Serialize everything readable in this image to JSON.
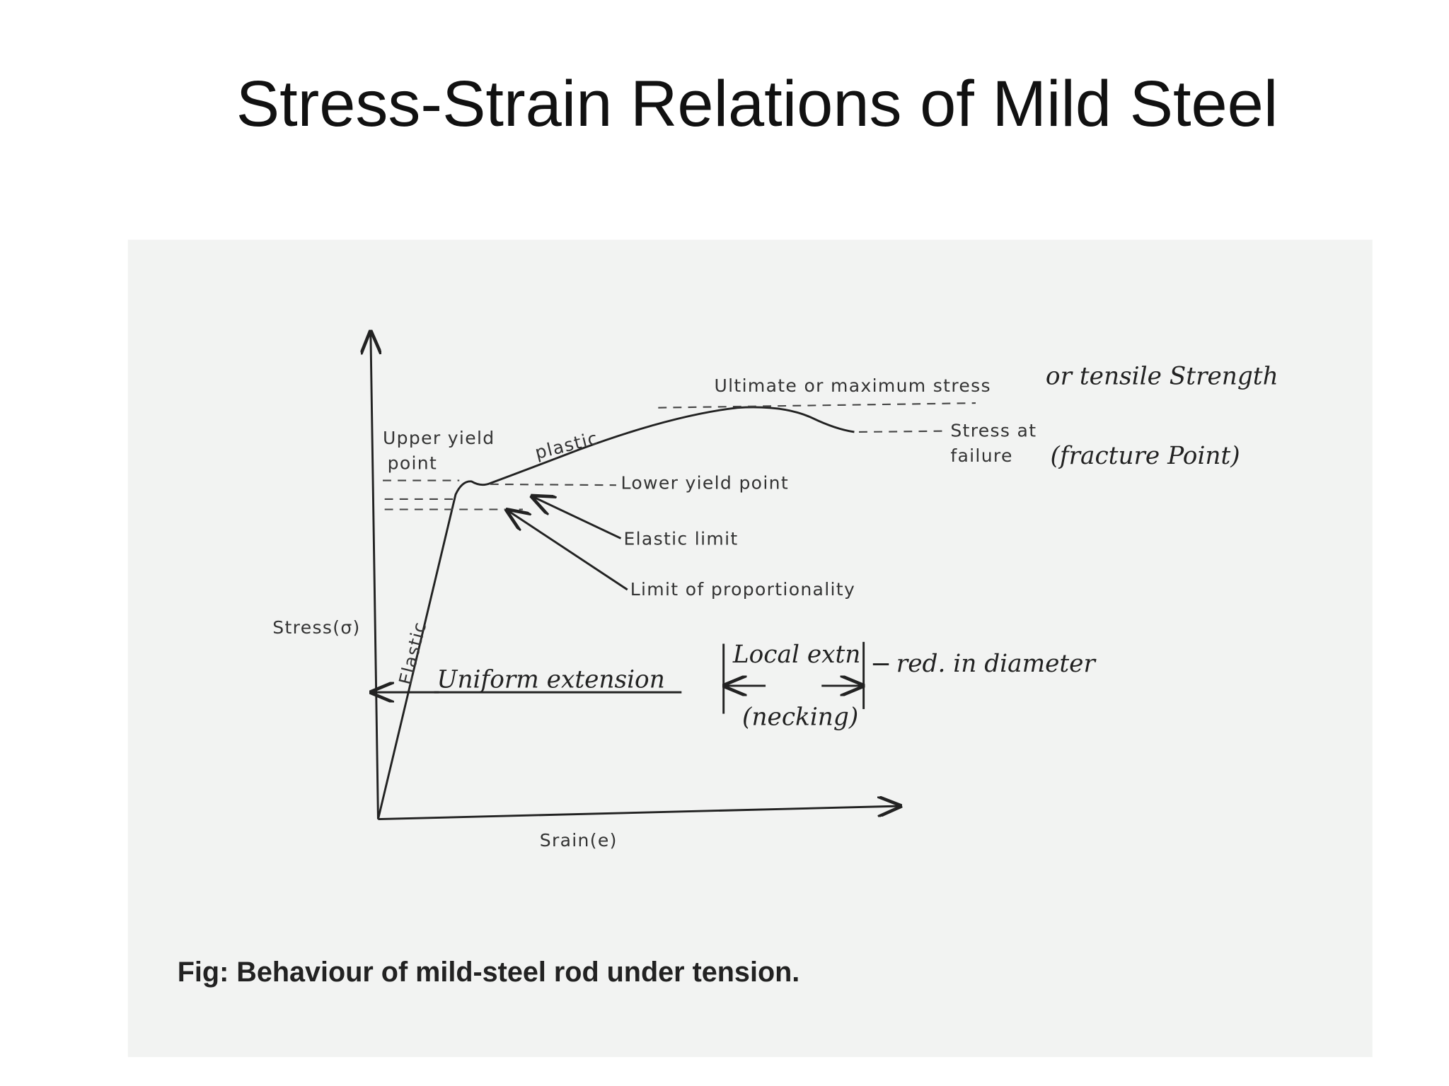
{
  "title": "Stress-Strain Relations of Mild Steel",
  "diagram": {
    "ultimate": "Ultimate or maximum stress",
    "tensile": "or tensile Strength",
    "upper_yield_1": "Upper yield",
    "upper_yield_2": "point",
    "plastic": "plastic",
    "lower_yield": "Lower yield point",
    "failure_1": "Stress at",
    "failure_2": "failure",
    "fracture": "(fracture Point)",
    "elastic_limit": "Elastic limit",
    "proportionality": "Limit of proportionality",
    "y_axis": "Stress(σ)",
    "elastic": "Elastic",
    "uniform": "Uniform extension",
    "local": "Local extn",
    "diameter": "red. in diameter",
    "necking": "(necking)",
    "x_axis": "Srain(e)"
  },
  "caption": "Fig:  Behaviour of mild-steel rod under tension."
}
